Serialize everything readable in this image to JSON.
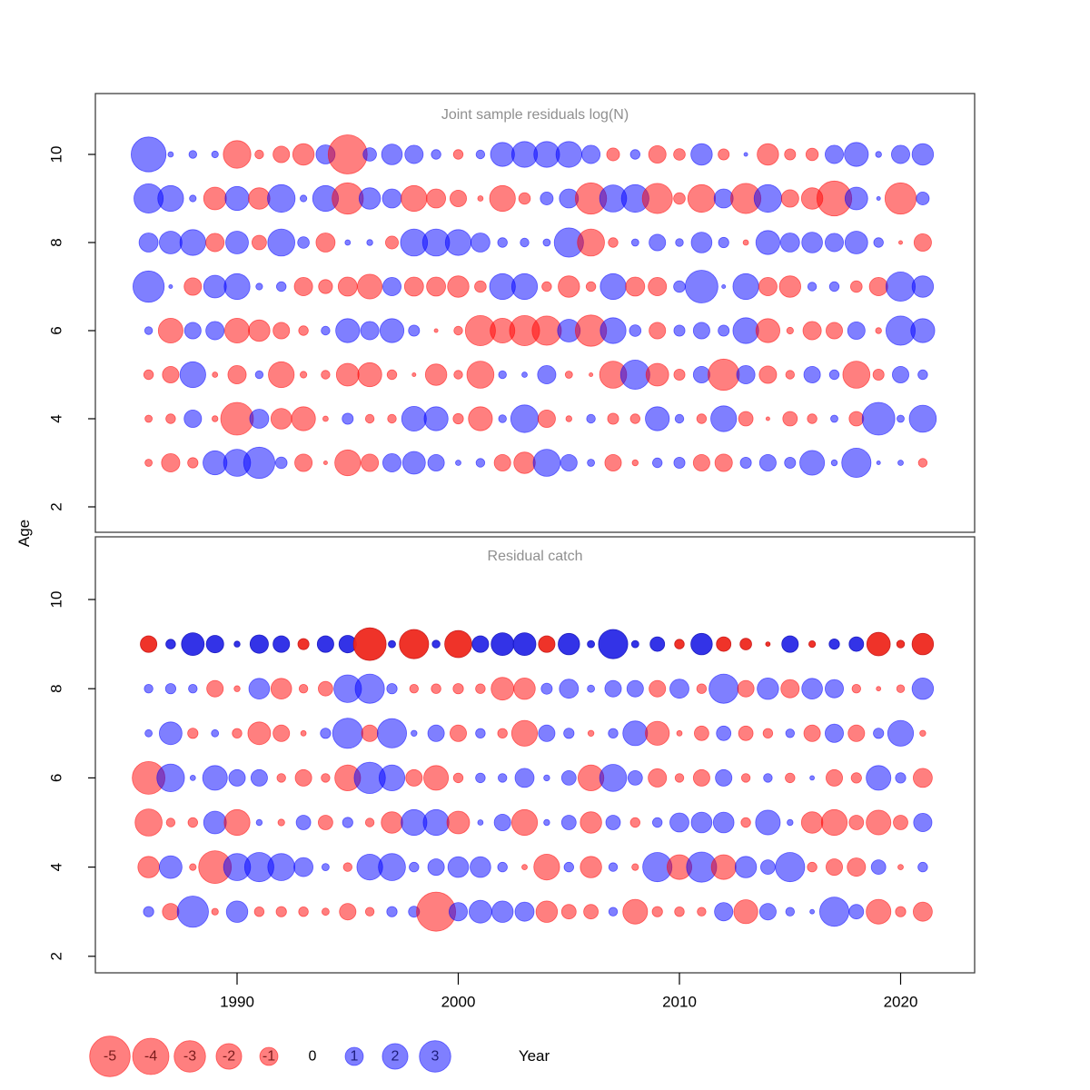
{
  "labels": {
    "y_axis": "Age",
    "x_axis": "Year"
  },
  "axes": {
    "x_ticks": [
      1990,
      2000,
      2010,
      2020
    ],
    "y_ticks": [
      2,
      4,
      6,
      8,
      10
    ]
  },
  "legend": {
    "values": [
      -5,
      -4,
      -3,
      -2,
      -1,
      0,
      1,
      2,
      3
    ],
    "negative_label_color": "#7a1c1c",
    "zero_label_color": "#000000",
    "positive_label_color": "#1c1c7a"
  },
  "colors": {
    "negative_fill": "rgba(255,0,0,0.5)",
    "positive_fill": "rgba(0,0,255,0.5)",
    "negative_saturated": "rgba(238,40,30,0.95)",
    "positive_saturated": "rgba(40,40,230,0.95)",
    "panel_border": "#404040",
    "title_color": "#8f8f8f"
  },
  "chart_data": [
    {
      "type": "scatter",
      "subtype": "bubble-residuals",
      "title": "Joint sample residuals log(N)",
      "xlabel": "Year",
      "ylabel": "Age",
      "x_start_year": 1986,
      "x_end_year": 2021,
      "xlim": [
        1984,
        2023
      ],
      "ylim": [
        1.5,
        11
      ],
      "x_ticks": [
        1990,
        2000,
        2010,
        2020
      ],
      "y_ticks": [
        2,
        4,
        6,
        8,
        10
      ],
      "grid": false,
      "encoding": "circle area ~ |residual|; red = negative, blue = positive",
      "series": [
        {
          "age": 10,
          "saturated": false,
          "values": [
            4,
            0.1,
            0.2,
            0.15,
            -2.5,
            -0.25,
            -0.9,
            -1.5,
            1.2,
            -5,
            0.6,
            1.4,
            1.1,
            0.3,
            -0.3,
            0.25,
            1.9,
            2.2,
            2.2,
            2.2,
            1.1,
            -0.55,
            0.3,
            -1,
            -0.45,
            1.5,
            -0.4,
            0.05,
            -1.5,
            -0.4,
            -0.5,
            1.1,
            1.9,
            0.12,
            1.1,
            1.5
          ]
        },
        {
          "age": 9,
          "saturated": false,
          "values": [
            2.8,
            2.2,
            0.15,
            -1.7,
            1.9,
            -1.5,
            2.5,
            0.15,
            2.2,
            -3.2,
            1.5,
            1.2,
            -2.2,
            -1.2,
            -0.9,
            -0.1,
            -2.2,
            -0.45,
            0.55,
            1.2,
            -3.2,
            2.4,
            2.5,
            -3,
            -0.45,
            -2.5,
            1.2,
            -3,
            2.5,
            -1,
            -1.5,
            -4,
            1.7,
            0.05,
            -3.2,
            0.55
          ]
        },
        {
          "age": 8,
          "saturated": false,
          "values": [
            1.2,
            1.7,
            2.2,
            -1.1,
            1.7,
            -0.7,
            2.4,
            0.45,
            -1.2,
            0.1,
            0.12,
            -0.55,
            2.4,
            2.4,
            2.2,
            1.2,
            0.3,
            0.25,
            0.17,
            2.8,
            -2.4,
            -0.3,
            0.17,
            0.9,
            0.2,
            1.4,
            0.35,
            -0.1,
            1.9,
            1.2,
            1.4,
            1.1,
            1.7,
            0.3,
            -0.05,
            -1
          ]
        },
        {
          "age": 7,
          "saturated": false,
          "values": [
            3.2,
            0.05,
            -1,
            1.7,
            2.2,
            0.15,
            0.3,
            -1.1,
            -0.65,
            -1.2,
            -2,
            1.1,
            -1.2,
            -1.2,
            -1.5,
            -0.45,
            2.2,
            2.2,
            -0.3,
            -1.5,
            -0.3,
            2.2,
            -1.2,
            -1.1,
            0.45,
            3.5,
            0.05,
            2.2,
            -1.1,
            -1.5,
            0.25,
            0.3,
            -0.45,
            -1.1,
            2.8,
            1.5
          ]
        },
        {
          "age": 6,
          "saturated": false,
          "values": [
            0.2,
            -2,
            0.9,
            1.1,
            -2,
            -1.5,
            -0.9,
            -0.3,
            0.25,
            1.9,
            1.1,
            1.9,
            0.4,
            -0.05,
            -0.25,
            -3,
            -2,
            -3,
            -2.8,
            1.7,
            -3.2,
            2.2,
            0.45,
            -0.9,
            0.4,
            0.9,
            0.4,
            2.2,
            -1.9,
            -0.15,
            -1.1,
            -0.9,
            1,
            -0.12,
            2.8,
            1.9
          ]
        },
        {
          "age": 5,
          "saturated": false,
          "values": [
            -0.3,
            -0.9,
            2.2,
            -0.1,
            -1.1,
            0.2,
            -2.2,
            -0.15,
            -0.25,
            -1.7,
            -1.9,
            -0.3,
            -0.05,
            -1.5,
            -0.25,
            -2.4,
            0.2,
            0.1,
            1.1,
            -0.17,
            -0.05,
            -2.4,
            2.8,
            -1.7,
            -0.4,
            0.9,
            -3.2,
            1.1,
            -1,
            -0.25,
            0.9,
            0.3,
            -2.4,
            -0.4,
            0.9,
            0.3
          ]
        },
        {
          "age": 4,
          "saturated": false,
          "values": [
            -0.17,
            -0.3,
            1,
            -0.12,
            -3.5,
            1.2,
            -1.4,
            -1.9,
            -0.1,
            0.4,
            -0.25,
            -0.25,
            2,
            1.9,
            -0.35,
            -1.9,
            0.2,
            2.5,
            -1,
            -0.12,
            0.25,
            -0.4,
            -0.3,
            1.9,
            0.25,
            -0.3,
            2.2,
            -0.7,
            -0.05,
            -0.7,
            -0.3,
            0.17,
            -0.7,
            3.5,
            0.17,
            2.4
          ]
        },
        {
          "age": 3,
          "saturated": false,
          "values": [
            -0.17,
            -1.1,
            -0.35,
            1.9,
            2.4,
            3.2,
            0.45,
            -1,
            -0.05,
            -2.2,
            -1,
            1.1,
            1.7,
            0.9,
            0.1,
            0.25,
            -0.9,
            -1.5,
            2.4,
            0.9,
            0.17,
            -0.9,
            -0.12,
            0.3,
            0.4,
            -0.9,
            -1,
            0.4,
            0.9,
            0.4,
            2,
            0.12,
            2.8,
            0.05,
            0.1,
            -0.25
          ]
        }
      ]
    },
    {
      "type": "scatter",
      "subtype": "bubble-residuals",
      "title": "Residual catch",
      "xlabel": "Year",
      "ylabel": "Age",
      "x_start_year": 1986,
      "x_end_year": 2021,
      "xlim": [
        1984,
        2023
      ],
      "ylim": [
        1.5,
        11
      ],
      "x_ticks": [
        1990,
        2000,
        2010,
        2020
      ],
      "y_ticks": [
        2,
        4,
        6,
        8,
        10
      ],
      "grid": false,
      "encoding": "circle area ~ |residual|; red = negative, blue = positive; age-9 row drawn opaque",
      "series": [
        {
          "age": 9,
          "saturated": true,
          "values": [
            -0.9,
            0.3,
            1.7,
            1,
            0.12,
            1.1,
            0.9,
            -0.4,
            0.9,
            1,
            -3.5,
            0.17,
            -2.8,
            0.2,
            -2.4,
            0.9,
            1.7,
            1.7,
            -0.9,
            1.5,
            0.17,
            2.8,
            0.17,
            0.7,
            -0.3,
            1.5,
            -0.7,
            -0.45,
            -0.07,
            0.9,
            -0.15,
            0.35,
            0.7,
            -1.8,
            -0.2,
            -1.5
          ]
        },
        {
          "age": 8,
          "saturated": false,
          "values": [
            0.25,
            0.35,
            0.25,
            -0.9,
            -0.12,
            1.4,
            -1.4,
            -0.25,
            -0.7,
            2.5,
            2.8,
            0.35,
            -0.25,
            -0.3,
            -0.35,
            -0.3,
            -1.7,
            -1.5,
            0.4,
            1.2,
            0.17,
            0.9,
            0.9,
            -0.9,
            1.2,
            -0.3,
            2.8,
            -0.9,
            1.5,
            -1.1,
            1.4,
            1.1,
            -0.25,
            -0.07,
            -0.2,
            1.5
          ]
        },
        {
          "age": 7,
          "saturated": false,
          "values": [
            0.17,
            1.7,
            -0.35,
            0.17,
            -0.3,
            -1.7,
            -0.9,
            -0.1,
            0.35,
            3,
            -0.9,
            2.8,
            0.12,
            0.9,
            -0.9,
            0.3,
            -0.3,
            -2.2,
            0.9,
            0.35,
            -0.12,
            0.3,
            2,
            -1.9,
            -0.1,
            -0.7,
            0.7,
            -0.7,
            -0.3,
            0.25,
            -0.9,
            1.1,
            -0.9,
            0.35,
            2.2,
            -0.12
          ]
        },
        {
          "age": 6,
          "saturated": false,
          "values": [
            -3.5,
            2.5,
            0.1,
            2,
            0.9,
            0.9,
            -0.25,
            -0.9,
            -0.25,
            -2.2,
            3.2,
            2.2,
            -0.9,
            -2,
            -0.3,
            0.3,
            0.25,
            1.2,
            0.12,
            0.7,
            -2.2,
            2.4,
            0.7,
            -1.1,
            -0.25,
            -0.9,
            0.9,
            -0.25,
            0.25,
            -0.3,
            0.07,
            -0.9,
            -0.35,
            2,
            0.35,
            -1.2
          ]
        },
        {
          "age": 5,
          "saturated": false,
          "values": [
            -2.4,
            -0.25,
            -0.3,
            1.7,
            -2.2,
            0.12,
            -0.15,
            0.7,
            -0.7,
            0.35,
            -0.25,
            -1.5,
            2.2,
            2.2,
            -1.7,
            0.1,
            0.9,
            -2.2,
            0.12,
            0.7,
            -1.5,
            0.7,
            -0.3,
            0.3,
            1.2,
            1.4,
            1.4,
            -0.3,
            2,
            0.12,
            -1.5,
            -2.2,
            -0.7,
            -2,
            -0.7,
            1.1
          ]
        },
        {
          "age": 4,
          "saturated": false,
          "values": [
            -1.5,
            1.7,
            -0.15,
            -3.5,
            2.4,
            2.8,
            2.4,
            1.2,
            0.17,
            -0.25,
            2.2,
            2.4,
            0.3,
            0.9,
            1.4,
            1.4,
            0.3,
            -0.1,
            -2.2,
            0.3,
            -1.5,
            0.25,
            -0.15,
            2.8,
            -2,
            3,
            -2,
            1.5,
            0.7,
            2.8,
            -0.3,
            -0.9,
            -1.1,
            0.7,
            -0.1,
            0.3
          ]
        },
        {
          "age": 3,
          "saturated": false,
          "values": [
            0.35,
            -0.9,
            3.2,
            -0.15,
            1.5,
            -0.3,
            -0.35,
            -0.3,
            -0.17,
            -0.9,
            -0.25,
            0.35,
            0.4,
            -5,
            1.1,
            1.7,
            1.5,
            1.2,
            -1.5,
            -0.7,
            -0.7,
            0.25,
            -2,
            -0.35,
            -0.3,
            -0.25,
            1.1,
            -1.9,
            0.9,
            0.25,
            0.07,
            2.8,
            0.7,
            -2,
            -0.35,
            -1.2
          ]
        }
      ]
    }
  ]
}
